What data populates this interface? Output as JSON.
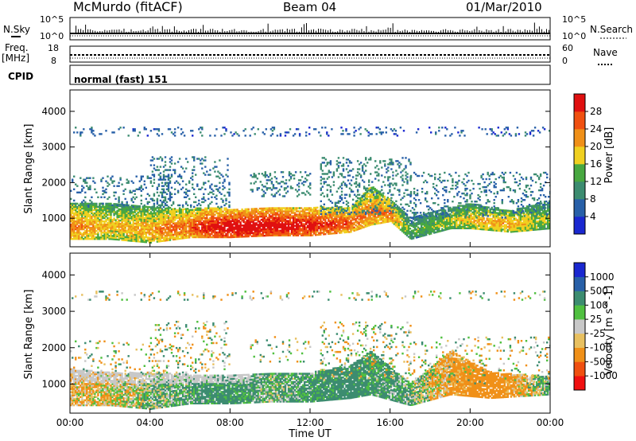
{
  "header": {
    "station": "McMurdo (fitACF)",
    "beam": "Beam 04",
    "date": "01/Mar/2010"
  },
  "top_panels": {
    "nsky": {
      "left_label": "N.Sky",
      "right_label": "N.Search",
      "left_ticks": [
        "10^5",
        "10^0"
      ],
      "right_ticks": [
        "10^5",
        "10^0"
      ]
    },
    "freq": {
      "left_label_1": "Freq.",
      "left_label_2": "[MHz]",
      "right_label": "Nave",
      "left_ticks": [
        "18",
        "8"
      ],
      "right_ticks": [
        "60",
        "0"
      ]
    },
    "cpid": {
      "label": "CPID",
      "value": "normal (fast) 151"
    }
  },
  "colors": {
    "power_scale": [
      "#1a28d0",
      "#2860a8",
      "#3c8c70",
      "#48a840",
      "#f0d020",
      "#f09018",
      "#f05010",
      "#e01010"
    ],
    "velocity_scale": [
      "#f01010",
      "#f05010",
      "#f09018",
      "#e8c060",
      "#c8c8c8",
      "#50c040",
      "#3c8c70",
      "#2860a8",
      "#1a28d0"
    ]
  },
  "chart_data": [
    {
      "type": "heatmap",
      "name": "power",
      "ylabel": "Slant Range [km]",
      "yticks": [
        "1000",
        "2000",
        "3000",
        "4000"
      ],
      "ylim": [
        200,
        4600
      ],
      "xlim": [
        0,
        24
      ],
      "colorbar_label": "Power [dB]",
      "colorbar_ticks": [
        "4",
        "8",
        "12",
        "16",
        "20",
        "24",
        "28"
      ],
      "colorbar_range": [
        0,
        32
      ],
      "scatter_bands": [
        {
          "t0": 0,
          "t1": 24,
          "r0": 3300,
          "r1": 3550,
          "value": 6,
          "density": 0.25
        },
        {
          "t0": 0,
          "t1": 5,
          "r0": 1300,
          "r1": 2200,
          "value": 8,
          "density": 0.3
        },
        {
          "t0": 4,
          "t1": 8,
          "r0": 1300,
          "r1": 2700,
          "value": 8,
          "density": 0.35
        },
        {
          "t0": 9,
          "t1": 12,
          "r0": 1600,
          "r1": 2300,
          "value": 9,
          "density": 0.35
        },
        {
          "t0": 12.5,
          "t1": 17,
          "r0": 1100,
          "r1": 2700,
          "value": 9,
          "density": 0.4
        },
        {
          "t0": 17,
          "t1": 24,
          "r0": 1000,
          "r1": 2300,
          "value": 8,
          "density": 0.3
        }
      ],
      "main_band": [
        {
          "t": 0,
          "r0": 400,
          "r1": 1400,
          "value": 22
        },
        {
          "t": 2,
          "r0": 400,
          "r1": 1400,
          "value": 18
        },
        {
          "t": 4,
          "r0": 300,
          "r1": 1300,
          "value": 20
        },
        {
          "t": 6,
          "r0": 450,
          "r1": 1250,
          "value": 24
        },
        {
          "t": 7,
          "r0": 450,
          "r1": 1300,
          "value": 28
        },
        {
          "t": 8,
          "r0": 450,
          "r1": 1250,
          "value": 30
        },
        {
          "t": 10,
          "r0": 500,
          "r1": 1300,
          "value": 30
        },
        {
          "t": 12,
          "r0": 500,
          "r1": 1300,
          "value": 28
        },
        {
          "t": 14,
          "r0": 600,
          "r1": 1300,
          "value": 24
        },
        {
          "t": 15,
          "r0": 800,
          "r1": 1900,
          "value": 22
        },
        {
          "t": 16,
          "r0": 900,
          "r1": 1500,
          "value": 22
        },
        {
          "t": 17,
          "r0": 400,
          "r1": 1000,
          "value": 12
        },
        {
          "t": 19,
          "r0": 700,
          "r1": 1300,
          "value": 16
        },
        {
          "t": 20,
          "r0": 700,
          "r1": 1400,
          "value": 18
        },
        {
          "t": 22,
          "r0": 600,
          "r1": 1200,
          "value": 20
        },
        {
          "t": 24,
          "r0": 700,
          "r1": 1500,
          "value": 14
        }
      ]
    },
    {
      "type": "heatmap",
      "name": "velocity",
      "ylabel": "Slant Range [km]",
      "yticks": [
        "1000",
        "2000",
        "3000",
        "4000"
      ],
      "ylim": [
        200,
        4600
      ],
      "xlim": [
        0,
        24
      ],
      "xlabel": "Time UT",
      "xticks": [
        "00:00",
        "04:00",
        "08:00",
        "12:00",
        "16:00",
        "20:00",
        "00:00"
      ],
      "colorbar_label": "Velocity [m s^-1]",
      "colorbar_ticks": [
        "-1000",
        "-500",
        "-100",
        "-25",
        "25",
        "100",
        "500",
        "1000"
      ],
      "main_band": [
        {
          "t": 0,
          "r0": 400,
          "r1": 1400,
          "value": -100
        },
        {
          "t": 2,
          "r0": 400,
          "r1": 1300,
          "value": -60
        },
        {
          "t": 4,
          "r0": 300,
          "r1": 1300,
          "value": 50
        },
        {
          "t": 6,
          "r0": 450,
          "r1": 1250,
          "value": 120
        },
        {
          "t": 8,
          "r0": 450,
          "r1": 1250,
          "value": 200
        },
        {
          "t": 10,
          "r0": 500,
          "r1": 1300,
          "value": 80
        },
        {
          "t": 12,
          "r0": 500,
          "r1": 1300,
          "value": 150
        },
        {
          "t": 14,
          "r0": 600,
          "r1": 1500,
          "value": 250
        },
        {
          "t": 15,
          "r0": 700,
          "r1": 1900,
          "value": 180
        },
        {
          "t": 17,
          "r0": 400,
          "r1": 1000,
          "value": 100
        },
        {
          "t": 19,
          "r0": 700,
          "r1": 1900,
          "value": -150
        },
        {
          "t": 21,
          "r0": 600,
          "r1": 1300,
          "value": -300
        },
        {
          "t": 24,
          "r0": 700,
          "r1": 1200,
          "value": 120
        }
      ],
      "ground_scatter": {
        "t0": 0,
        "t1": 9,
        "r0": 1000,
        "r1": 1500,
        "value": 0
      }
    }
  ]
}
